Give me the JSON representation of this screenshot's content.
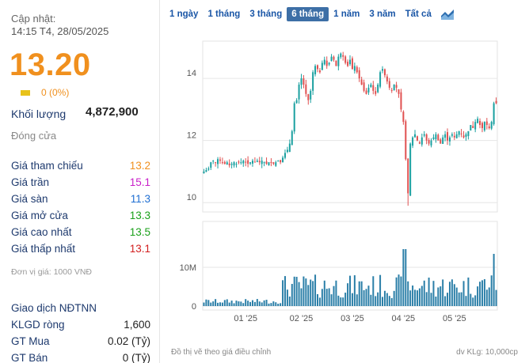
{
  "info": {
    "updated_label": "Cập nhật:",
    "updated_time": "14:15 T4, 28/05/2025",
    "price": "13.20",
    "change": "0 (0%)",
    "volume_label": "Khối lượng",
    "volume_value": "4,872,900",
    "close_label": "Đóng cửa"
  },
  "stats": [
    {
      "label": "Giá tham chiếu",
      "value": "13.2",
      "color": "#f0901e"
    },
    {
      "label": "Giá trần",
      "value": "15.1",
      "color": "#c81ec8"
    },
    {
      "label": "Giá sàn",
      "value": "11.3",
      "color": "#1e6ed2"
    },
    {
      "label": "Giá mở cửa",
      "value": "13.3",
      "color": "#1aa01a"
    },
    {
      "label": "Giá cao nhất",
      "value": "13.5",
      "color": "#1aa01a"
    },
    {
      "label": "Giá thấp nhất",
      "value": "13.1",
      "color": "#d21e1e"
    }
  ],
  "unit_note": "Đơn vị giá: 1000 VNĐ",
  "foreign": {
    "title": "Giao dịch NĐTNN",
    "rows": [
      {
        "label": "KLGD ròng",
        "value": "1,600"
      },
      {
        "label": "GT Mua",
        "value": "0.02 (Tỷ)"
      },
      {
        "label": "GT Bán",
        "value": "0 (Tỷ)"
      }
    ]
  },
  "tabs": [
    "1 ngày",
    "1 tháng",
    "3 tháng",
    "6 tháng",
    "1 năm",
    "3 năm",
    "Tất cả"
  ],
  "active_tab": "6 tháng",
  "footer": {
    "note": "Đồ thị vẽ theo giá điều chỉnh",
    "volume_unit": "dv KLg: 10,000cp"
  },
  "colors": {
    "up": "#1aa0a0",
    "down": "#e05050",
    "volume": "#2b7fa8",
    "accent": "#f0901e"
  },
  "chart_data": {
    "type": "candlestick",
    "price_ticks": [
      10,
      12,
      14
    ],
    "price_ylim": [
      9.7,
      15.2
    ],
    "volume_ticks": [
      "0",
      "10M"
    ],
    "x_tick_labels": [
      "01 '25",
      "02 '25",
      "03 '25",
      "04 '25",
      "05 '25"
    ],
    "x_tick_index": [
      18,
      42,
      64,
      86,
      108
    ],
    "close": [
      11.0,
      11.05,
      11.1,
      11.3,
      11.35,
      11.3,
      11.4,
      11.35,
      11.3,
      11.25,
      11.3,
      11.2,
      11.25,
      11.3,
      11.25,
      11.3,
      11.3,
      11.35,
      11.3,
      11.25,
      11.3,
      11.35,
      11.3,
      11.35,
      11.3,
      11.35,
      11.3,
      11.25,
      11.3,
      11.3,
      11.25,
      11.3,
      11.35,
      11.3,
      11.45,
      11.6,
      11.7,
      11.9,
      12.3,
      13.2,
      13.3,
      13.8,
      14.0,
      13.8,
      13.5,
      13.3,
      13.6,
      14.2,
      14.4,
      14.3,
      14.2,
      14.5,
      14.6,
      14.4,
      14.5,
      14.7,
      14.6,
      14.4,
      14.7,
      14.8,
      14.7,
      14.5,
      14.4,
      14.6,
      14.3,
      14.4,
      14.2,
      14.0,
      13.8,
      13.6,
      13.5,
      13.7,
      13.8,
      13.6,
      13.5,
      13.8,
      14.2,
      14.3,
      14.1,
      13.9,
      13.7,
      13.6,
      13.8,
      13.7,
      13.5,
      13.0,
      12.6,
      11.4,
      10.3,
      11.9,
      12.1,
      12.2,
      12.0,
      11.9,
      12.1,
      12.2,
      12.0,
      11.9,
      12.0,
      12.1,
      12.2,
      12.0,
      11.9,
      12.1,
      12.2,
      12.0,
      12.1,
      12.2,
      12.1,
      12.2,
      12.3,
      12.2,
      12.1,
      12.2,
      12.3,
      12.5,
      12.4,
      12.6,
      12.7,
      12.5,
      12.4,
      12.6,
      12.5,
      12.4,
      12.6,
      13.2,
      13.2
    ]
  }
}
